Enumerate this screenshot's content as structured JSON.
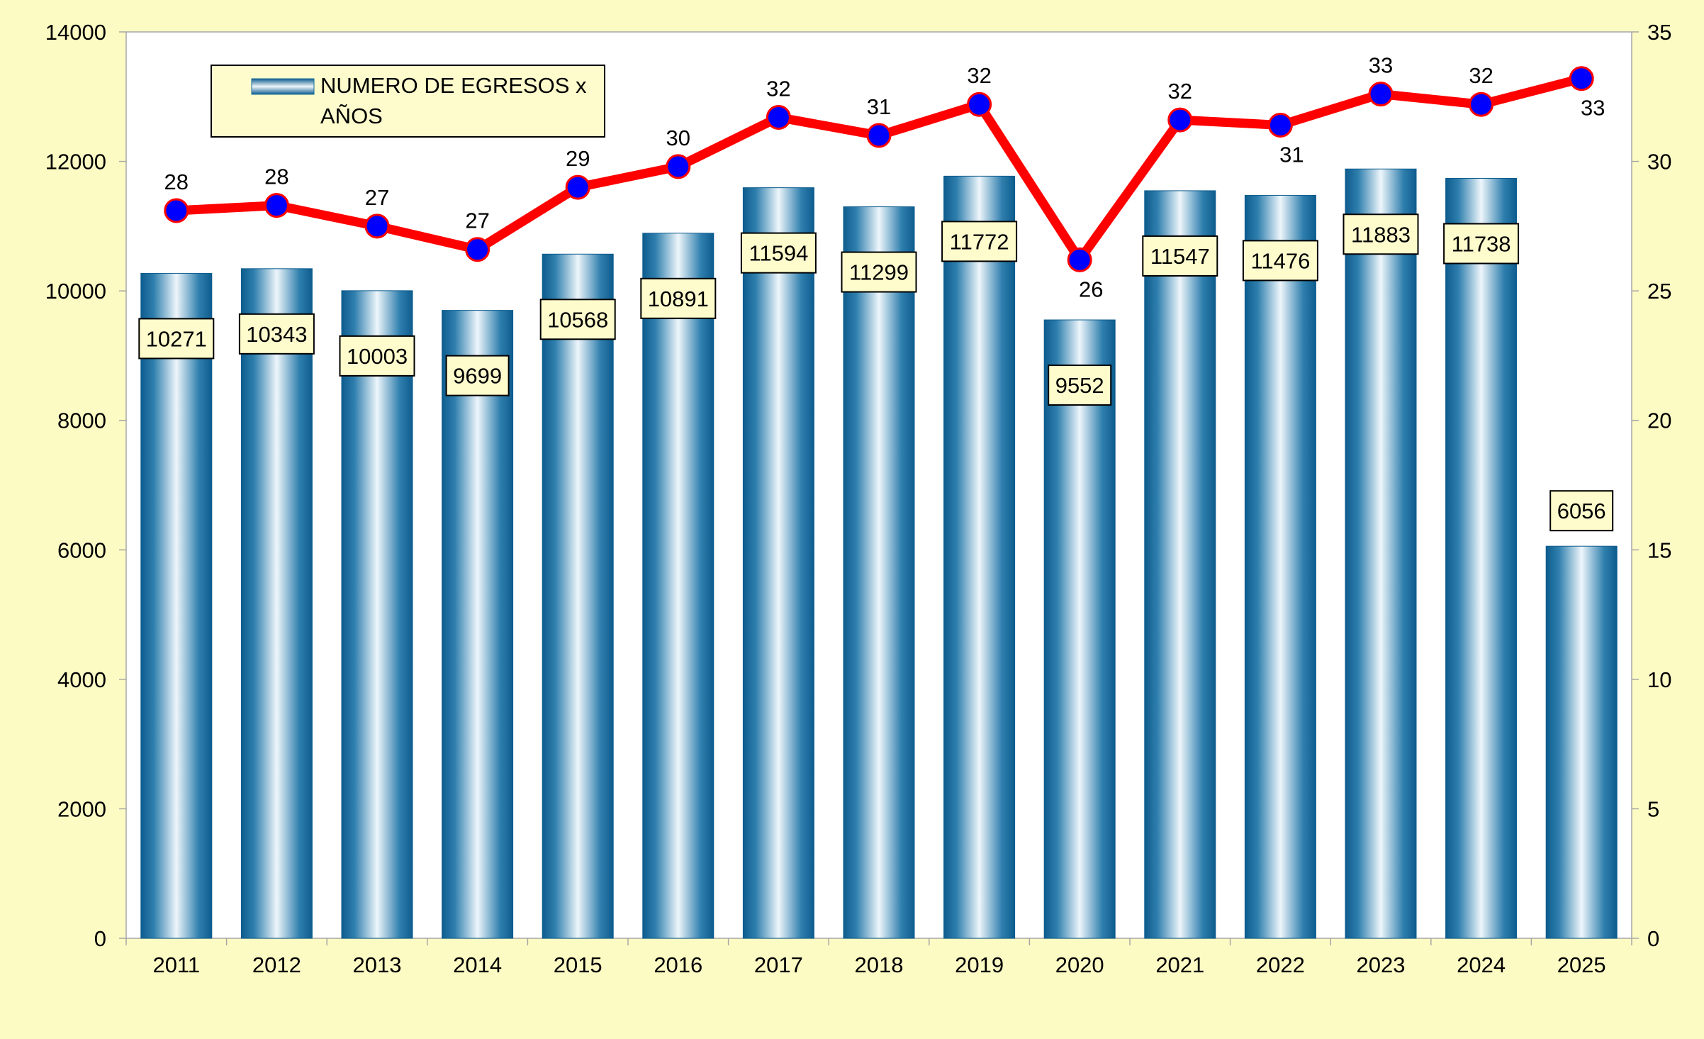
{
  "chart_data": {
    "type": "bar",
    "categories": [
      "2011",
      "2012",
      "2013",
      "2014",
      "2015",
      "2016",
      "2017",
      "2018",
      "2019",
      "2020",
      "2021",
      "2022",
      "2023",
      "2024",
      "2025"
    ],
    "series": [
      {
        "name": "NUMERO DE EGRESOS x AÑOS",
        "kind": "bar",
        "axis": "left",
        "values": [
          10271,
          10343,
          10003,
          9699,
          10568,
          10891,
          11594,
          11299,
          11772,
          9552,
          11547,
          11476,
          11883,
          11738,
          6056
        ],
        "color": "#1a6a9a"
      },
      {
        "name": "",
        "kind": "line",
        "axis": "right",
        "values": [
          28.1,
          28.3,
          27.5,
          26.6,
          29.0,
          29.8,
          31.7,
          31.0,
          32.2,
          26.2,
          31.6,
          31.4,
          32.6,
          32.2,
          33.2
        ],
        "labels": [
          "28",
          "28",
          "27",
          "27",
          "29",
          "30",
          "32",
          "31",
          "32",
          "26",
          "32",
          "31",
          "33",
          "32",
          "33"
        ],
        "line_color": "#ff0000",
        "marker_color": "#0000ff"
      }
    ],
    "y_left": {
      "min": 0,
      "max": 14000,
      "ticks": [
        "0",
        "2000",
        "4000",
        "6000",
        "8000",
        "10000",
        "12000",
        "14000"
      ]
    },
    "y_right": {
      "min": 0,
      "max": 35,
      "ticks": [
        "0",
        "5",
        "10",
        "15",
        "20",
        "25",
        "30",
        "35"
      ]
    },
    "title": "",
    "xlabel": "",
    "ylabel": "",
    "grid": false,
    "legend": {
      "position": "top-left",
      "entries": [
        "NUMERO DE EGRESOS x",
        "AÑOS"
      ]
    },
    "background": "#fdfbc4",
    "plot_background": "#ffffff",
    "label_box_color": "#fefccc"
  }
}
